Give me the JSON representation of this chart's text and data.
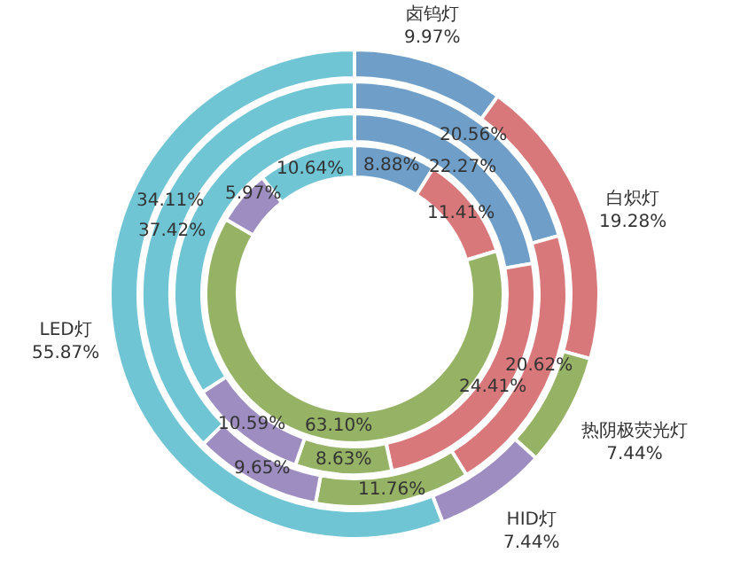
{
  "chart_data": {
    "type": "donut",
    "categories": [
      "卤钨灯",
      "白炽灯",
      "热阴极荧光灯",
      "HID灯",
      "LED灯"
    ],
    "colors": [
      "#6f9fc9",
      "#d9787a",
      "#95b265",
      "#9d8dc0",
      "#70c5d5"
    ],
    "data_labels": true,
    "legend": false,
    "series": [
      {
        "values": [
          9.97,
          19.28,
          7.44,
          7.44,
          55.87
        ],
        "value_labels": [
          "9.97%",
          "19.28%",
          "7.44%",
          "7.44%",
          "55.87%"
        ]
      },
      {
        "values": [
          20.56,
          20.62,
          11.76,
          9.65,
          37.42
        ],
        "value_labels": [
          "20.56%",
          "20.62%",
          "11.76%",
          "9.65%",
          "37.42%"
        ]
      },
      {
        "values": [
          22.27,
          24.41,
          8.63,
          10.59,
          34.11
        ],
        "value_labels": [
          "22.27%",
          "24.41%",
          "8.63%",
          "10.59%",
          "34.11%"
        ]
      },
      {
        "values": [
          8.88,
          11.41,
          63.1,
          5.97,
          10.64
        ],
        "value_labels": [
          "8.88%",
          "11.41%",
          "63.10%",
          "5.97%",
          "10.64%"
        ]
      }
    ]
  }
}
